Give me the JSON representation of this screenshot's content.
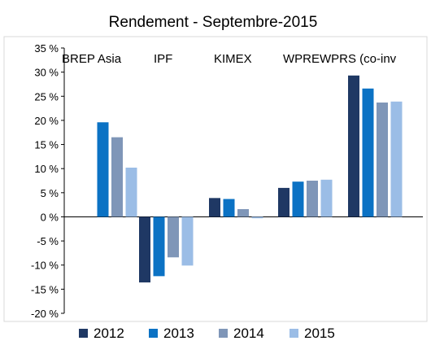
{
  "chart_data": {
    "type": "bar",
    "title": "Rendement - Septembre-2015",
    "categories": [
      "BREP Asia",
      "IPF",
      "KIMEX",
      "WPREWPRS (co-inv"
    ],
    "series": [
      {
        "name": "2012",
        "values": [
          null,
          -13.6,
          3.9,
          6.0
        ],
        "color": "#1f3864"
      },
      {
        "name": "2013",
        "values": [
          19.6,
          -12.3,
          3.7,
          7.3
        ],
        "color": "#0b72c4"
      },
      {
        "name": "2014",
        "values": [
          16.5,
          -8.4,
          1.6,
          7.5
        ],
        "color": "#7f96b8"
      },
      {
        "name": "2015",
        "values": [
          10.2,
          -10.1,
          -0.3,
          7.7
        ],
        "color": "#9bbde6"
      }
    ],
    "extra_group": {
      "values": [
        29.3,
        26.6,
        23.7,
        23.9
      ]
    },
    "ylim": [
      -20,
      35
    ],
    "yticks": [
      "35 %",
      "30 %",
      "25 %",
      "20 %",
      "15 %",
      "10 %",
      "5 %",
      "0 %",
      "-5 %",
      "-10 %",
      "-15 %",
      "-20 %"
    ],
    "legend_position": "bottom",
    "grid": false
  }
}
